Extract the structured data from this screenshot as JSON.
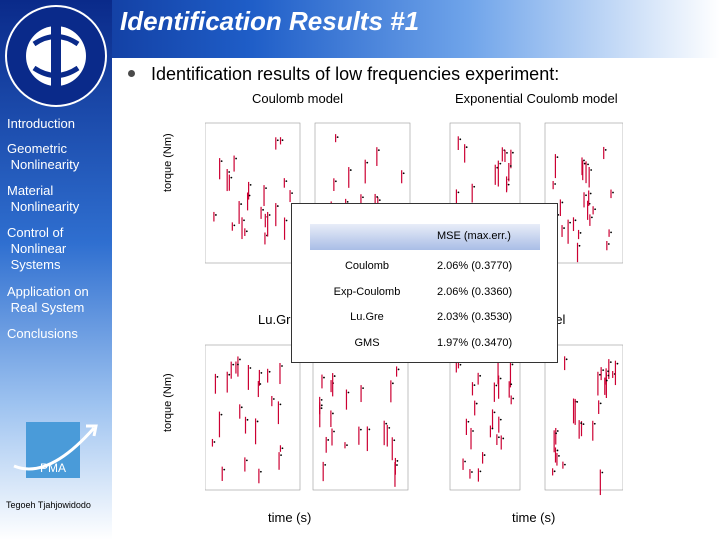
{
  "slide": {
    "title": "Identification Results #1",
    "bullet": "Identification results of low frequencies experiment:",
    "author": "Tegoeh Tjahjowidodo",
    "logo_text": "PMA"
  },
  "sidebar": {
    "items": [
      {
        "label": "Introduction"
      },
      {
        "label": "Geometric\n Nonlinearity"
      },
      {
        "label": "Material\n Nonlinearity"
      },
      {
        "label": "Control of\n Nonlinear\n Systems"
      },
      {
        "label": "Application on\n Real System"
      },
      {
        "label": "Conclusions"
      }
    ]
  },
  "plots": {
    "top_left_title": "Coulomb model",
    "top_right_title": "Exponential Coulomb model",
    "bottom_left_title": "Lu.Gr",
    "bottom_right_title": "del",
    "ylabel": "torque (Nm)",
    "xlabel_left": "time (s)",
    "xlabel_right": "time (s)"
  },
  "table": {
    "header": "MSE (max.err.)",
    "rows": [
      {
        "model": "Coulomb",
        "value": "2.06% (0.3770)"
      },
      {
        "model": "Exp-Coulomb",
        "value": "2.06% (0.3360)"
      },
      {
        "model": "Lu.Gre",
        "value": "2.03% (0.3530)"
      },
      {
        "model": "GMS",
        "value": "1.97% (0.3470)"
      }
    ]
  },
  "colors": {
    "header_dark": "#0a2a8a",
    "header_mid": "#1f5ec8",
    "measured": "#000000",
    "simulated": "#cc0033"
  }
}
